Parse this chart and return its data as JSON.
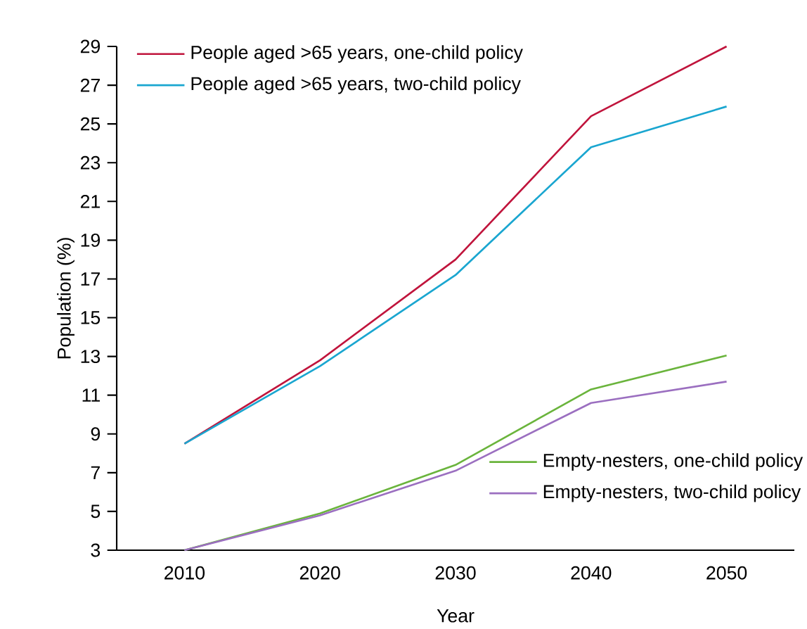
{
  "chart_data": {
    "type": "line",
    "xlabel": "Year",
    "ylabel": "Population (%)",
    "categories": [
      "2010",
      "2020",
      "2030",
      "2040",
      "2050"
    ],
    "series": [
      {
        "name": "People aged >65 years, one-child policy",
        "color": "#c0143c",
        "values": [
          8.5,
          12.8,
          18.0,
          25.4,
          29.0
        ]
      },
      {
        "name": "People aged >65 years, two-child policy",
        "color": "#1aa6d0",
        "values": [
          8.5,
          12.5,
          17.2,
          23.8,
          25.9
        ]
      },
      {
        "name": "Empty-nesters, one-child policy",
        "color": "#6ab43c",
        "values": [
          3.0,
          4.9,
          7.4,
          11.3,
          13.05
        ]
      },
      {
        "name": "Empty-nesters, two-child policy",
        "color": "#9b6fc0",
        "values": [
          3.0,
          4.8,
          7.1,
          10.6,
          11.7
        ]
      }
    ],
    "ylim": [
      3,
      29
    ],
    "yticks": [
      3,
      5,
      7,
      9,
      11,
      13,
      15,
      17,
      19,
      21,
      23,
      25,
      27,
      29
    ],
    "grid": false,
    "legend": "top left",
    "marker": "none",
    "line_style": "solid"
  }
}
